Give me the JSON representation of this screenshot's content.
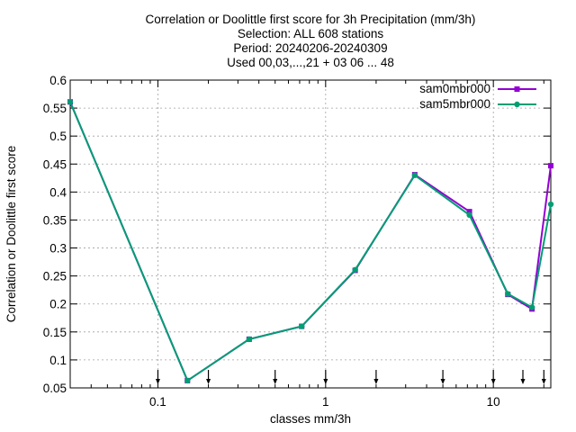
{
  "chart_data": {
    "type": "line",
    "title_lines": [
      "Correlation or Doolittle first score  for 3h Precipitation (mm/3h)",
      "Selection: ALL    608 stations",
      "Period: 20240206-20240309",
      "Used 00,03,...,21 + 03 06 ... 48"
    ],
    "xlabel": "classes mm/3h",
    "ylabel": "Correlation or Doolittle first score",
    "xscale": "log",
    "xlim": [
      0.03,
      22
    ],
    "ylim": [
      0.05,
      0.6
    ],
    "x_ticks": [
      {
        "value": 0.1,
        "label": "0.1"
      },
      {
        "value": 1,
        "label": "1"
      },
      {
        "value": 10,
        "label": "10"
      }
    ],
    "y_ticks": [
      {
        "value": 0.05,
        "label": "0.05"
      },
      {
        "value": 0.1,
        "label": "0.1"
      },
      {
        "value": 0.15,
        "label": "0.15"
      },
      {
        "value": 0.2,
        "label": "0.2"
      },
      {
        "value": 0.25,
        "label": "0.25"
      },
      {
        "value": 0.3,
        "label": "0.3"
      },
      {
        "value": 0.35,
        "label": "0.35"
      },
      {
        "value": 0.4,
        "label": "0.4"
      },
      {
        "value": 0.45,
        "label": "0.45"
      },
      {
        "value": 0.5,
        "label": "0.5"
      },
      {
        "value": 0.55,
        "label": "0.55"
      },
      {
        "value": 0.6,
        "label": "0.6"
      }
    ],
    "grid": true,
    "legend_position": "top-right",
    "class_markers": [
      0.1,
      0.2,
      0.5,
      1,
      2,
      5,
      10,
      15,
      20
    ],
    "series": [
      {
        "name": "sam0mbr000",
        "color": "#9400d3",
        "x": [
          0.03,
          0.15,
          0.35,
          0.72,
          1.5,
          3.4,
          7.2,
          12.2,
          17.0,
          22.0
        ],
        "y": [
          0.561,
          0.063,
          0.137,
          0.16,
          0.26,
          0.431,
          0.365,
          0.217,
          0.191,
          0.447
        ]
      },
      {
        "name": "sam5mbr000",
        "color": "#009e73",
        "x": [
          0.03,
          0.15,
          0.35,
          0.72,
          1.5,
          3.4,
          7.2,
          12.2,
          17.0,
          22.0
        ],
        "y": [
          0.561,
          0.063,
          0.137,
          0.16,
          0.261,
          0.43,
          0.359,
          0.218,
          0.194,
          0.378
        ]
      }
    ]
  }
}
